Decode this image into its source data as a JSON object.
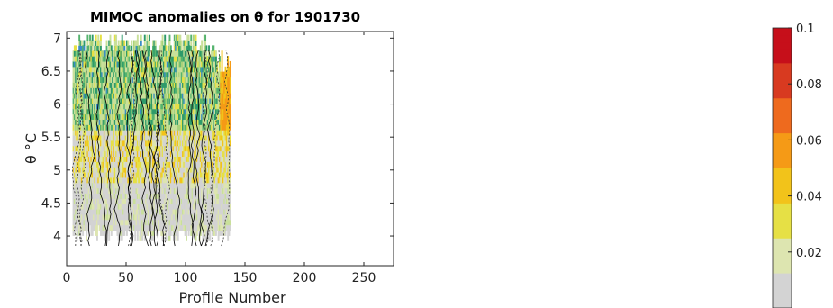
{
  "chart_data": {
    "type": "heatmap",
    "title": "MIMOC anomalies on θ for 1901730",
    "xlabel": "Profile Number",
    "ylabel": "θ °C",
    "xlim": [
      0,
      275
    ],
    "ylim": [
      3.55,
      7.1
    ],
    "x_ticks": [
      "0",
      "50",
      "100",
      "150",
      "200",
      "250"
    ],
    "x_tick_values": [
      0,
      50,
      100,
      150,
      200,
      250
    ],
    "y_ticks": [
      "4",
      "4.5",
      "5",
      "5.5",
      "6",
      "6.5",
      "7"
    ],
    "y_tick_values": [
      4,
      4.5,
      5,
      5.5,
      6,
      6.5,
      7
    ],
    "data_x_range": [
      5,
      137
    ],
    "data_y_range": [
      3.85,
      7.05
    ],
    "colorbar": {
      "ticks": [
        "0.02",
        "0.04",
        "0.06",
        "0.08",
        "0.1"
      ],
      "tick_values": [
        0.02,
        0.04,
        0.06,
        0.08,
        0.1
      ],
      "range": [
        0,
        0.1
      ],
      "colormap": [
        "#d3d3d3",
        "#dde5b0",
        "#e6e045",
        "#f2c31a",
        "#f59a16",
        "#ee6a1e",
        "#d83a20",
        "#c60f1a"
      ]
    },
    "grid": false,
    "legend": "none"
  }
}
